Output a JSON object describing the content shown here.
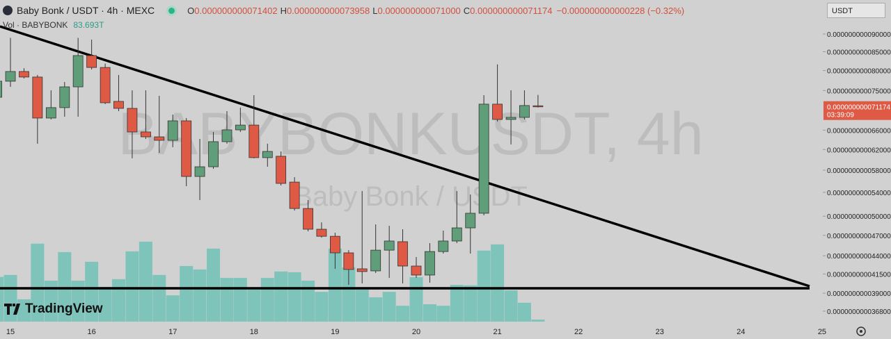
{
  "chart_data": {
    "type": "candlestick",
    "title": "Baby Bonk / USDT · 4h · MEXC",
    "ohlc": [
      {
        "label": "O",
        "value": "0.000000000071402"
      },
      {
        "label": "H",
        "value": "0.000000000073958"
      },
      {
        "label": "L",
        "value": "0.000000000071000"
      },
      {
        "label": "C",
        "value": "0.000000000071174"
      }
    ],
    "change": "−0.000000000000228 (−0.32%)",
    "volume_title": "Vol · BABYBONK",
    "volume_label": "83.693T",
    "watermark": "BABYBONKUSDT, 4h",
    "watermark_subtitle": "Baby Bonk / USDT",
    "logo": "TradingView",
    "currency": "USDT",
    "countdown": "03:39:09",
    "last_price": {
      "value": 7.1174e-11,
      "label": "0.000000000071174"
    },
    "log_scale": true,
    "grid": false,
    "up_color": "#5f9e78",
    "down_color": "#de5a44",
    "volume_color": "#7fc4bb",
    "x": [
      14.833,
      15,
      15.167,
      15.333,
      15.5,
      15.667,
      15.833,
      16,
      16.167,
      16.333,
      16.5,
      16.667,
      16.833,
      17,
      17.167,
      17.333,
      17.5,
      17.667,
      17.833,
      18,
      18.167,
      18.333,
      18.5,
      18.667,
      18.833,
      19,
      19.167,
      19.333,
      19.5,
      19.667,
      19.833,
      20,
      20.167,
      20.333,
      20.5,
      20.667,
      20.833,
      21,
      21.167,
      21.333,
      21.5
    ],
    "open": [
      7.339e-11,
      7.729e-11,
      7.975e-11,
      7.834e-11,
      6.863e-11,
      7.098e-11,
      7.59e-11,
      8.396e-11,
      8.08e-11,
      7.242e-11,
      7.081e-11,
      6.562e-11,
      6.459e-11,
      6.387e-11,
      6.801e-11,
      5.684e-11,
      5.865e-11,
      6.359e-11,
      6.606e-11,
      6.709e-11,
      6.04e-11,
      6.067e-11,
      5.582e-11,
      5.126e-11,
      4.794e-11,
      4.686e-11,
      4.442e-11,
      4.219e-11,
      4.191e-11,
      4.481e-11,
      4.605e-11,
      4.257e-11,
      4.135e-11,
      4.461e-11,
      4.615e-11,
      4.815e-11,
      5.048e-11,
      7.178e-11,
      6.832e-11,
      6.878e-11,
      7.1402e-11
    ],
    "high": [
      7.852e-11,
      8.89e-11,
      8.06e-11,
      7.887e-11,
      7.506e-11,
      7.71e-11,
      8.89e-11,
      8.84e-11,
      8.18e-11,
      7.887e-11,
      7.506e-11,
      7.506e-11,
      7.373e-11,
      6.94e-11,
      6.863e-11,
      6.415e-11,
      6.562e-11,
      7.017e-11,
      7.098e-11,
      7.389e-11,
      6.317e-11,
      6.162e-11,
      5.671e-11,
      5.267e-11,
      4.901e-11,
      4.74e-11,
      4.481e-11,
      5.423e-11,
      4.869e-11,
      4.847e-11,
      4.794e-11,
      4.383e-11,
      4.584e-11,
      4.772e-11,
      5.423e-11,
      5.362e-11,
      7.389e-11,
      8.16e-11,
      7.506e-11,
      7.506e-11,
      7.3958e-11
    ],
    "low": [
      7.258e-11,
      7.59e-11,
      7.799e-11,
      6.317e-11,
      6.832e-11,
      6.894e-11,
      6.894e-11,
      8.028e-11,
      7.178e-11,
      7.017e-11,
      6.027e-11,
      6.415e-11,
      6.134e-11,
      6.247e-11,
      5.509e-11,
      5.267e-11,
      5.826e-11,
      6.317e-11,
      6.562e-11,
      6.027e-11,
      5.865e-11,
      5.521e-11,
      5.092e-11,
      4.762e-11,
      4.666e-11,
      4.219e-11,
      4.007e-11,
      4.025e-11,
      4.163e-11,
      4.097e-11,
      4.025e-11,
      4.097e-11,
      4.034e-11,
      4.432e-11,
      4.584e-11,
      4.432e-11,
      5.014e-11,
      6.786e-11,
      6.303e-11,
      6.832e-11,
      7.1e-11
    ],
    "close": [
      7.729e-11,
      7.975e-11,
      7.834e-11,
      6.863e-11,
      7.098e-11,
      7.59e-11,
      8.396e-11,
      8.08e-11,
      7.21e-11,
      7.081e-11,
      6.562e-11,
      6.459e-11,
      6.387e-11,
      6.801e-11,
      5.684e-11,
      5.865e-11,
      6.359e-11,
      6.606e-11,
      6.709e-11,
      6.04e-11,
      6.162e-11,
      5.558e-11,
      5.126e-11,
      4.794e-11,
      4.686e-11,
      4.442e-11,
      4.21e-11,
      4.182e-11,
      4.481e-11,
      4.615e-11,
      4.257e-11,
      4.135e-11,
      4.461e-11,
      4.615e-11,
      4.815e-11,
      5.048e-11,
      7.178e-11,
      6.832e-11,
      6.878e-11,
      7.146e-11,
      7.1174e-11
    ],
    "volume": [
      1800,
      1880,
      900,
      3140,
      1650,
      2800,
      1650,
      2410,
      1400,
      1710,
      2830,
      3220,
      1880,
      1060,
      2240,
      2100,
      2940,
      1760,
      1760,
      1290,
      1760,
      2020,
      1990,
      1650,
      1200,
      2940,
      2180,
      1290,
      980,
      1200,
      640,
      1790,
      700,
      640,
      1480,
      1460,
      2860,
      3110,
      1260,
      760,
      83.693
    ],
    "xlim": [
      14.871,
      25.009
    ],
    "xticks": [
      15,
      16,
      17,
      18,
      19,
      20,
      21,
      22,
      23,
      24,
      25
    ],
    "ylim": [
      3.558e-11,
      1.0045e-10
    ],
    "yticks": [
      {
        "value": 9e-11,
        "label": "0.000000000090000"
      },
      {
        "value": 8.5e-11,
        "label": "0.000000000085000"
      },
      {
        "value": 8e-11,
        "label": "0.000000000080000"
      },
      {
        "value": 7.5e-11,
        "label": "0.000000000075000"
      },
      {
        "value": 6.6e-11,
        "label": "0.000000000066000"
      },
      {
        "value": 6.2e-11,
        "label": "0.000000000062000"
      },
      {
        "value": 5.8e-11,
        "label": "0.000000000058000"
      },
      {
        "value": 5.4e-11,
        "label": "0.000000000054000"
      },
      {
        "value": 5e-11,
        "label": "0.000000000050000"
      },
      {
        "value": 4.7e-11,
        "label": "0.000000000047000"
      },
      {
        "value": 4.4e-11,
        "label": "0.000000000044000"
      },
      {
        "value": 4.15e-11,
        "label": "0.000000000041500"
      },
      {
        "value": 3.9e-11,
        "label": "0.000000000039000"
      },
      {
        "value": 3.68e-11,
        "label": "0.000000000036800"
      }
    ],
    "y2lim": [
      0,
      4000
    ]
  }
}
